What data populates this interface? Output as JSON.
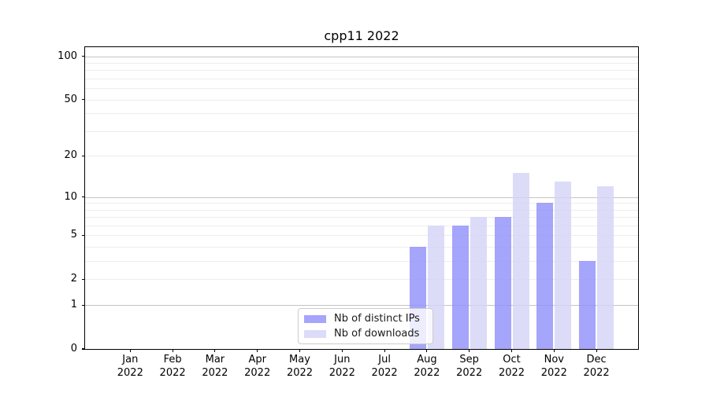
{
  "title": "cpp11 2022",
  "chart_data": {
    "type": "bar",
    "title": "cpp11 2022",
    "x": {
      "months": [
        "Jan",
        "Feb",
        "Mar",
        "Apr",
        "May",
        "Jun",
        "Jul",
        "Aug",
        "Sep",
        "Oct",
        "Nov",
        "Dec"
      ],
      "year": "2022"
    },
    "series": [
      {
        "name": "Nb of distinct IPs",
        "color": "rgba(145,145,250,0.82)",
        "values": [
          0,
          0,
          0,
          0,
          0,
          0,
          0,
          4,
          6,
          7,
          9,
          3
        ]
      },
      {
        "name": "Nb of downloads",
        "color": "rgba(212,212,248,0.82)",
        "values": [
          0,
          0,
          0,
          0,
          0,
          0,
          0,
          6,
          7,
          15,
          13,
          12
        ]
      }
    ],
    "y_axis": {
      "scale": "log10(1+value)",
      "ticks": [
        100,
        50,
        20,
        10,
        5,
        2,
        1,
        0
      ],
      "max_log": 2.067,
      "major_gridlines": [
        1,
        10,
        100
      ],
      "minor_gridlines": [
        2,
        3,
        4,
        5,
        6,
        7,
        8,
        9,
        20,
        30,
        40,
        50,
        60,
        70,
        80,
        90
      ],
      "grid_major_color": "#c4c4c4",
      "grid_minor_color": "#ededed"
    },
    "ylim": [
      0,
      115
    ],
    "legend_position": "lower center",
    "grid": "on"
  },
  "legend": {
    "items": [
      {
        "label": "Nb of distinct IPs",
        "swatch": "rgba(145,145,250,0.82)"
      },
      {
        "label": "Nb of downloads",
        "swatch": "rgba(212,212,248,0.82)"
      }
    ]
  }
}
